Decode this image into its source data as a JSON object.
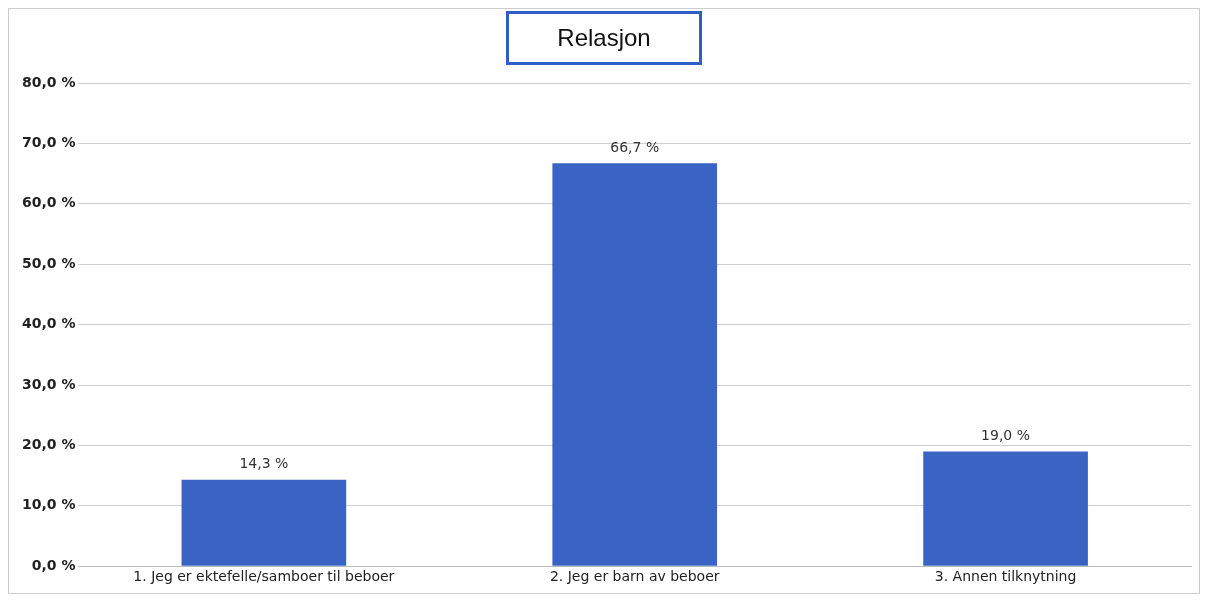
{
  "chart_data": {
    "type": "bar",
    "title": "Relasjon",
    "categories": [
      "1. Jeg er ektefelle/samboer til beboer",
      "2. Jeg er barn av beboer",
      "3. Annen tilknytning"
    ],
    "values": [
      14.3,
      66.7,
      19.0
    ],
    "color": "#3a64c4",
    "value_labels": [
      "14,3 %",
      "66,7 %",
      "19,0 %"
    ],
    "ylim": [
      0,
      80
    ],
    "yticks": [
      {
        "value": 0,
        "label": "0,0 %"
      },
      {
        "value": 10,
        "label": "10,0 %"
      },
      {
        "value": 20,
        "label": "20,0 %"
      },
      {
        "value": 30,
        "label": "30,0 %"
      },
      {
        "value": 40,
        "label": "40,0 %"
      },
      {
        "value": 50,
        "label": "50,0 %"
      },
      {
        "value": 60,
        "label": "60,0 %"
      },
      {
        "value": 70,
        "label": "70,0 %"
      },
      {
        "value": 80,
        "label": "80,0 %"
      }
    ],
    "grid": "y",
    "legend": false
  }
}
